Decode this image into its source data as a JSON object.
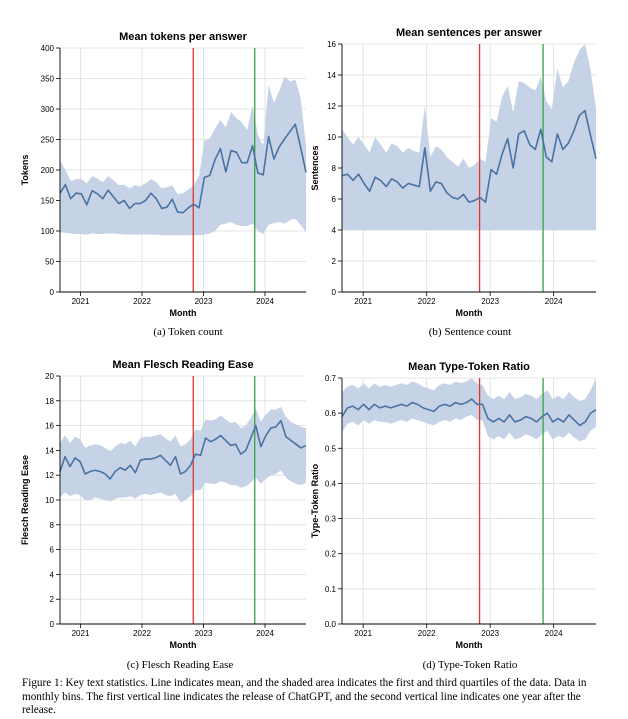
{
  "chart_data": [
    {
      "type": "line",
      "title": "Mean tokens per answer",
      "xlabel": "Month",
      "ylabel": "Tokens",
      "subcaption": "(a) Token count",
      "ylim": [
        0,
        400
      ],
      "yticks": [
        0,
        50,
        100,
        150,
        200,
        250,
        300,
        350,
        400
      ],
      "xticks": [
        "2021",
        "2022",
        "2023",
        "2024"
      ],
      "x_start": "2020-09",
      "x_end": "2024-09",
      "vlines": [
        {
          "x": "2022-11",
          "color": "#e0332e"
        },
        {
          "x": "2023-11",
          "color": "#3aa043"
        }
      ],
      "series": [
        {
          "mean": [
            162,
            176,
            153,
            162,
            161,
            143,
            166,
            161,
            153,
            167,
            156,
            145,
            150,
            137,
            145,
            145,
            150,
            162,
            153,
            137,
            139,
            152,
            131,
            130,
            138,
            144,
            138,
            188,
            191,
            217,
            235,
            197,
            232,
            229,
            212,
            212,
            240,
            195,
            192,
            255,
            218,
            238,
            251,
            263,
            275,
            237,
            196
          ],
          "q1": [
            98,
            97,
            96,
            95,
            95,
            94,
            96,
            95,
            95,
            96,
            96,
            95,
            94,
            94,
            94,
            94,
            94,
            94,
            94,
            93,
            93,
            93,
            93,
            93,
            93,
            93,
            93,
            94,
            96,
            100,
            110,
            112,
            115,
            110,
            108,
            108,
            112,
            100,
            95,
            110,
            113,
            115,
            112,
            118,
            120,
            110,
            98
          ],
          "q3": [
            215,
            200,
            182,
            185,
            185,
            178,
            190,
            186,
            180,
            190,
            183,
            175,
            176,
            170,
            175,
            173,
            178,
            185,
            180,
            170,
            172,
            175,
            160,
            162,
            168,
            175,
            190,
            248,
            252,
            268,
            282,
            270,
            295,
            285,
            278,
            265,
            306,
            258,
            240,
            340,
            310,
            330,
            353,
            345,
            348,
            318,
            240
          ]
        }
      ]
    },
    {
      "type": "line",
      "title": "Mean sentences per answer",
      "xlabel": "Month",
      "ylabel": "Sentences",
      "subcaption": "(b) Sentence count",
      "ylim": [
        0,
        16
      ],
      "yticks": [
        0,
        2,
        4,
        6,
        8,
        10,
        12,
        14,
        16
      ],
      "xticks": [
        "2021",
        "2022",
        "2023",
        "2024"
      ],
      "x_start": "2020-09",
      "x_end": "2024-09",
      "vlines": [
        {
          "x": "2022-11",
          "color": "#e0332e"
        },
        {
          "x": "2023-11",
          "color": "#3aa043"
        }
      ],
      "series": [
        {
          "mean": [
            7.5,
            7.6,
            7.2,
            7.6,
            7.0,
            6.5,
            7.4,
            7.2,
            6.8,
            7.3,
            7.1,
            6.7,
            7.0,
            6.9,
            6.8,
            9.3,
            6.5,
            7.1,
            7.0,
            6.4,
            6.1,
            6.0,
            6.3,
            5.8,
            5.9,
            6.1,
            5.8,
            7.9,
            7.6,
            8.9,
            9.9,
            8.0,
            10.2,
            10.4,
            9.5,
            9.2,
            10.5,
            8.7,
            8.4,
            10.2,
            9.2,
            9.6,
            10.4,
            11.4,
            11.7,
            10.1,
            8.6
          ],
          "q1": [
            4,
            4,
            4,
            4,
            4,
            4,
            4,
            4,
            4,
            4,
            4,
            4,
            4,
            4,
            4,
            4,
            4,
            4,
            4,
            4,
            4,
            4,
            4,
            4,
            4,
            4,
            4,
            4,
            4,
            4,
            4,
            4,
            4,
            4,
            4,
            4,
            4,
            4,
            4,
            4,
            4,
            4,
            4,
            4,
            4,
            4,
            4
          ],
          "q3": [
            10.5,
            10,
            9.5,
            10,
            9.5,
            9,
            10,
            9.5,
            9,
            9.6,
            9.4,
            9,
            9.3,
            9.1,
            9,
            12,
            8.7,
            9.4,
            9.2,
            8.7,
            8.4,
            8.1,
            8.6,
            8.0,
            8.2,
            8.6,
            8.4,
            11.2,
            11,
            12.6,
            13.3,
            11.6,
            13.6,
            13.5,
            13.2,
            13.0,
            13.9,
            12.3,
            11.8,
            14.4,
            13.2,
            13.6,
            14.8,
            15.6,
            16,
            14.4,
            11.8
          ]
        }
      ]
    },
    {
      "type": "line",
      "title": "Mean Flesch Reading Ease",
      "xlabel": "Month",
      "ylabel": "Flesch Reading Ease",
      "subcaption": "(c) Flesch Reading Ease",
      "ylim": [
        0,
        20
      ],
      "yticks": [
        0,
        2,
        4,
        6,
        8,
        10,
        12,
        14,
        16,
        18,
        20
      ],
      "xticks": [
        "2021",
        "2022",
        "2023",
        "2024"
      ],
      "x_start": "2020-09",
      "x_end": "2024-09",
      "vlines": [
        {
          "x": "2022-11",
          "color": "#e0332e"
        },
        {
          "x": "2023-11",
          "color": "#3aa043"
        }
      ],
      "series": [
        {
          "mean": [
            12.3,
            13.5,
            12.7,
            13.4,
            13.1,
            12.1,
            12.3,
            12.4,
            12.3,
            12.1,
            11.7,
            12.3,
            12.6,
            12.4,
            12.8,
            12.2,
            13.2,
            13.3,
            13.3,
            13.4,
            13.6,
            13.2,
            12.8,
            13.5,
            12.1,
            12.3,
            12.8,
            13.7,
            13.6,
            15.0,
            14.7,
            14.9,
            15.2,
            14.8,
            14.4,
            14.5,
            13.7,
            14.0,
            15.0,
            16.0,
            14.3,
            15.2,
            15.8,
            15.9,
            16.4,
            15.1,
            14.8,
            14.5,
            14.2,
            14.4
          ],
          "q1": [
            10.2,
            10.6,
            10.3,
            10.5,
            10.4,
            10.0,
            10.0,
            10.2,
            10.1,
            10.0,
            9.9,
            10.1,
            10.2,
            10.2,
            10.3,
            10.1,
            10.4,
            10.5,
            10.4,
            10.5,
            10.6,
            10.4,
            10.3,
            10.5,
            9.8,
            10.0,
            10.3,
            10.8,
            10.8,
            11.4,
            11.3,
            11.3,
            11.5,
            11.4,
            11.2,
            11.2,
            11.0,
            11.1,
            11.4,
            11.8,
            11.3,
            11.7,
            12.0,
            12.1,
            12.4,
            11.8,
            11.5,
            11.3,
            11.2,
            11.4
          ],
          "q3": [
            14.6,
            15.2,
            14.6,
            15.1,
            14.9,
            14.2,
            14.4,
            14.5,
            14.4,
            14.2,
            13.9,
            14.3,
            14.6,
            14.5,
            14.8,
            14.3,
            15.0,
            15.1,
            15.1,
            15.2,
            15.3,
            15.0,
            14.7,
            15.2,
            14.3,
            14.5,
            14.9,
            15.7,
            15.6,
            16.5,
            16.4,
            16.5,
            16.8,
            16.5,
            16.2,
            16.3,
            15.8,
            16.0,
            16.6,
            17.4,
            16.3,
            16.9,
            17.3,
            17.3,
            17.5,
            16.7,
            16.3,
            16.1,
            15.9,
            15.8
          ]
        }
      ]
    },
    {
      "type": "line",
      "title": "Mean Type-Token Ratio",
      "xlabel": "Month",
      "ylabel": "Type-Token Ratio",
      "subcaption": "(d) Type-Token Ratio",
      "ylim": [
        0,
        0.7
      ],
      "yticks": [
        0.0,
        0.1,
        0.2,
        0.3,
        0.4,
        0.5,
        0.6,
        0.7
      ],
      "ytick_labels": [
        "0.0",
        "0.1",
        "0.2",
        "0.3",
        "0.4",
        "0.5",
        "0.6",
        "0.7"
      ],
      "xticks": [
        "2021",
        "2022",
        "2023",
        "2024"
      ],
      "x_start": "2020-09",
      "x_end": "2024-09",
      "vlines": [
        {
          "x": "2022-11",
          "color": "#e0332e"
        },
        {
          "x": "2023-11",
          "color": "#3aa043"
        }
      ],
      "series": [
        {
          "mean": [
            0.59,
            0.615,
            0.62,
            0.61,
            0.625,
            0.61,
            0.625,
            0.615,
            0.62,
            0.615,
            0.62,
            0.625,
            0.62,
            0.63,
            0.625,
            0.615,
            0.61,
            0.605,
            0.62,
            0.625,
            0.62,
            0.63,
            0.625,
            0.63,
            0.64,
            0.625,
            0.625,
            0.585,
            0.575,
            0.585,
            0.575,
            0.595,
            0.575,
            0.58,
            0.59,
            0.585,
            0.575,
            0.59,
            0.6,
            0.575,
            0.585,
            0.575,
            0.595,
            0.58,
            0.565,
            0.575,
            0.6,
            0.61
          ],
          "q1": [
            0.545,
            0.57,
            0.575,
            0.565,
            0.58,
            0.57,
            0.58,
            0.575,
            0.575,
            0.57,
            0.575,
            0.58,
            0.575,
            0.585,
            0.58,
            0.575,
            0.57,
            0.565,
            0.575,
            0.58,
            0.575,
            0.585,
            0.58,
            0.59,
            0.595,
            0.58,
            0.58,
            0.535,
            0.525,
            0.535,
            0.525,
            0.545,
            0.525,
            0.53,
            0.54,
            0.535,
            0.525,
            0.54,
            0.55,
            0.525,
            0.535,
            0.53,
            0.545,
            0.53,
            0.52,
            0.525,
            0.55,
            0.56
          ],
          "q3": [
            0.66,
            0.675,
            0.68,
            0.67,
            0.685,
            0.67,
            0.685,
            0.675,
            0.68,
            0.675,
            0.68,
            0.685,
            0.68,
            0.69,
            0.685,
            0.675,
            0.67,
            0.665,
            0.68,
            0.685,
            0.68,
            0.69,
            0.685,
            0.69,
            0.7,
            0.685,
            0.68,
            0.65,
            0.64,
            0.65,
            0.64,
            0.66,
            0.64,
            0.645,
            0.655,
            0.65,
            0.64,
            0.655,
            0.665,
            0.64,
            0.65,
            0.64,
            0.66,
            0.645,
            0.635,
            0.64,
            0.665,
            0.7
          ]
        }
      ]
    }
  ],
  "caption": "Figure 1: Key text statistics. Line indicates mean, and the shaded area indicates the first and third quartiles of the data. Data in monthly bins. The first vertical line indicates the release of ChatGPT, and the second vertical line indicates one year after the release.",
  "colors": {
    "line": "#4a72a3",
    "band": "#c3d1e5",
    "grid": "#dddddd"
  }
}
